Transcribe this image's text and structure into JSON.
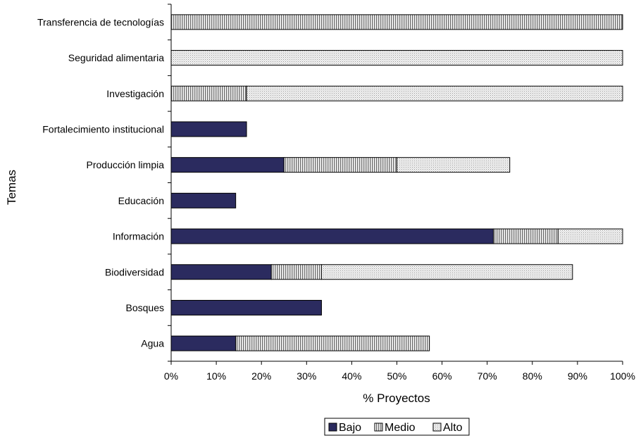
{
  "chart_data": {
    "type": "bar",
    "orientation": "horizontal",
    "stacked": true,
    "title": "",
    "xlabel": "% Proyectos",
    "ylabel": "Temas",
    "xlim": [
      0,
      100
    ],
    "x_ticks": [
      "0%",
      "10%",
      "20%",
      "30%",
      "40%",
      "50%",
      "60%",
      "70%",
      "80%",
      "90%",
      "100%"
    ],
    "grid": false,
    "legend_position": "bottom",
    "categories": [
      "Transferencia de tecnologías",
      "Seguridad alimentaria",
      "Investigación",
      "Fortalecimiento institucional",
      "Producción limpia",
      "Educación",
      "Información",
      "Biodiversidad",
      "Bosques",
      "Agua"
    ],
    "series": [
      {
        "name": "Bajo",
        "color": "#2b2b5f",
        "pattern": "solid",
        "values": [
          0,
          0,
          0,
          16.7,
          25,
          14.3,
          71.4,
          22.2,
          33.3,
          14.3
        ]
      },
      {
        "name": "Medio",
        "color": "#8a8a8a",
        "pattern": "vertical-stripes",
        "values": [
          100,
          0,
          16.7,
          0,
          25,
          0,
          14.3,
          11.1,
          0,
          42.9
        ]
      },
      {
        "name": "Alto",
        "color": "#d9d9d9",
        "pattern": "dots",
        "values": [
          0,
          100,
          83.3,
          0,
          25,
          0,
          14.3,
          55.6,
          0,
          0
        ]
      }
    ]
  }
}
